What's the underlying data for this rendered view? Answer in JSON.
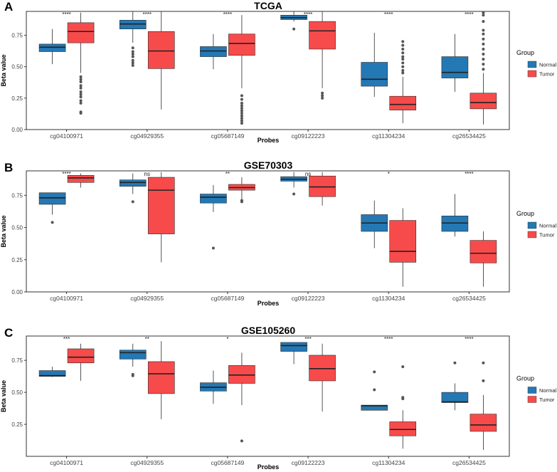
{
  "colors": {
    "normal": "#2478b4",
    "tumor": "#f74b4b",
    "outline": "#2b2b2b",
    "axis": "#333333",
    "outlier": "#555555"
  },
  "chart_data": [
    {
      "type": "boxplot",
      "panel_letter": "A",
      "title": "TCGA",
      "xlabel": "Probes",
      "ylabel": "Beta value",
      "ylim": [
        0,
        0.94
      ],
      "yticks": [
        "0.00",
        "0.25",
        "0.50",
        "0.75"
      ],
      "ytick_values": [
        0,
        0.25,
        0.5,
        0.75
      ],
      "categories": [
        "cg04100971",
        "cg04929355",
        "cg05687149",
        "cg09122223",
        "cg11304234",
        "cg26534425"
      ],
      "significance": [
        "****",
        "****",
        "****",
        "****",
        "****",
        "****"
      ],
      "legend": {
        "title": "Group",
        "entries": [
          "Normal",
          "Tumor"
        ]
      },
      "series": [
        {
          "name": "Normal",
          "boxes": [
            {
              "min": 0.52,
              "q1": 0.62,
              "median": 0.655,
              "q3": 0.68,
              "max": 0.8,
              "outliers": []
            },
            {
              "min": 0.69,
              "q1": 0.8,
              "median": 0.84,
              "q3": 0.87,
              "max": 0.94,
              "outliers": [
                0.51,
                0.53,
                0.55,
                0.58,
                0.6,
                0.62,
                0.65
              ]
            },
            {
              "min": 0.48,
              "q1": 0.58,
              "median": 0.625,
              "q3": 0.66,
              "max": 0.76,
              "outliers": []
            },
            {
              "min": 0.86,
              "q1": 0.875,
              "median": 0.89,
              "q3": 0.91,
              "max": 0.94,
              "outliers": [
                0.8
              ]
            },
            {
              "min": 0.26,
              "q1": 0.345,
              "median": 0.4,
              "q3": 0.535,
              "max": 0.77,
              "outliers": []
            },
            {
              "min": 0.3,
              "q1": 0.41,
              "median": 0.455,
              "q3": 0.58,
              "max": 0.76,
              "outliers": []
            }
          ]
        },
        {
          "name": "Tumor",
          "boxes": [
            {
              "min": 0.45,
              "q1": 0.69,
              "median": 0.78,
              "q3": 0.85,
              "max": 0.93,
              "outliers": [
                0.13,
                0.14,
                0.21,
                0.23,
                0.26,
                0.28,
                0.3,
                0.33,
                0.35,
                0.38,
                0.4,
                0.42
              ]
            },
            {
              "min": 0.16,
              "q1": 0.485,
              "median": 0.625,
              "q3": 0.78,
              "max": 0.94,
              "outliers": []
            },
            {
              "min": 0.33,
              "q1": 0.59,
              "median": 0.685,
              "q3": 0.76,
              "max": 0.91,
              "outliers": [
                0.05,
                0.07,
                0.09,
                0.11,
                0.13,
                0.15,
                0.17,
                0.19,
                0.21,
                0.24,
                0.27
              ]
            },
            {
              "min": 0.33,
              "q1": 0.64,
              "median": 0.785,
              "q3": 0.86,
              "max": 0.94,
              "outliers": [
                0.25,
                0.27,
                0.29
              ]
            },
            {
              "min": 0.05,
              "q1": 0.155,
              "median": 0.2,
              "q3": 0.265,
              "max": 0.42,
              "outliers": [
                0.45,
                0.47,
                0.5,
                0.53,
                0.56,
                0.58,
                0.61,
                0.64,
                0.67,
                0.7
              ]
            },
            {
              "min": 0.04,
              "q1": 0.165,
              "median": 0.215,
              "q3": 0.29,
              "max": 0.45,
              "outliers": [
                0.48,
                0.52,
                0.56,
                0.6,
                0.64,
                0.68,
                0.72,
                0.76,
                0.79,
                0.86,
                0.91,
                0.93
              ]
            }
          ]
        }
      ]
    },
    {
      "type": "boxplot",
      "panel_letter": "B",
      "title": "GSE70303",
      "xlabel": "Probes",
      "ylabel": "Beta value",
      "ylim": [
        0,
        0.94
      ],
      "yticks": [
        "0.00",
        "0.25",
        "0.50",
        "0.75"
      ],
      "ytick_values": [
        0,
        0.25,
        0.5,
        0.75
      ],
      "categories": [
        "cg04100971",
        "cg04929355",
        "cg05687149",
        "cg09122223",
        "cg11304234",
        "cg26534425"
      ],
      "significance": [
        "****",
        "ns",
        "**",
        "ns",
        "*",
        "****"
      ],
      "legend": {
        "title": "Group",
        "entries": [
          "Normal",
          "Tumor"
        ]
      },
      "series": [
        {
          "name": "Normal",
          "boxes": [
            {
              "min": 0.6,
              "q1": 0.68,
              "median": 0.73,
              "q3": 0.77,
              "max": 0.77,
              "outliers": [
                0.54
              ]
            },
            {
              "min": 0.76,
              "q1": 0.82,
              "median": 0.85,
              "q3": 0.87,
              "max": 0.92,
              "outliers": [
                0.7
              ]
            },
            {
              "min": 0.62,
              "q1": 0.69,
              "median": 0.735,
              "q3": 0.76,
              "max": 0.83,
              "outliers": [
                0.34
              ]
            },
            {
              "min": 0.81,
              "q1": 0.86,
              "median": 0.875,
              "q3": 0.895,
              "max": 0.93,
              "outliers": [
                0.76
              ]
            },
            {
              "min": 0.34,
              "q1": 0.47,
              "median": 0.535,
              "q3": 0.6,
              "max": 0.71,
              "outliers": []
            },
            {
              "min": 0.43,
              "q1": 0.47,
              "median": 0.535,
              "q3": 0.59,
              "max": 0.76,
              "outliers": []
            }
          ]
        },
        {
          "name": "Tumor",
          "boxes": [
            {
              "min": 0.81,
              "q1": 0.85,
              "median": 0.885,
              "q3": 0.905,
              "max": 0.92,
              "outliers": []
            },
            {
              "min": 0.23,
              "q1": 0.45,
              "median": 0.79,
              "q3": 0.89,
              "max": 0.93,
              "outliers": []
            },
            {
              "min": 0.72,
              "q1": 0.79,
              "median": 0.81,
              "q3": 0.835,
              "max": 0.89,
              "outliers": [
                0.7,
                0.71
              ]
            },
            {
              "min": 0.67,
              "q1": 0.74,
              "median": 0.815,
              "q3": 0.9,
              "max": 0.93,
              "outliers": []
            },
            {
              "min": 0.04,
              "q1": 0.23,
              "median": 0.315,
              "q3": 0.555,
              "max": 0.65,
              "outliers": []
            },
            {
              "min": 0.04,
              "q1": 0.225,
              "median": 0.3,
              "q3": 0.4,
              "max": 0.47,
              "outliers": []
            }
          ]
        }
      ]
    },
    {
      "type": "boxplot",
      "panel_letter": "C",
      "title": "GSE105260",
      "xlabel": "Probes",
      "ylabel": "Beta value",
      "ylim": [
        0,
        0.94
      ],
      "yticks": [
        "0.25",
        "0.50",
        "0.75"
      ],
      "ytick_values": [
        0.25,
        0.5,
        0.75
      ],
      "categories": [
        "cg04100971",
        "cg04929355",
        "cg05687149",
        "cg09122223",
        "cg11304234",
        "cg26534425"
      ],
      "significance": [
        "***",
        "**",
        "*",
        "***",
        "****",
        "****"
      ],
      "legend": {
        "title": "Group",
        "entries": [
          "Normal",
          "Tumor"
        ]
      },
      "series": [
        {
          "name": "Normal",
          "boxes": [
            {
              "min": 0.62,
              "q1": 0.625,
              "median": 0.63,
              "q3": 0.67,
              "max": 0.7,
              "outliers": []
            },
            {
              "min": 0.7,
              "q1": 0.76,
              "median": 0.81,
              "q3": 0.83,
              "max": 0.88,
              "outliers": [
                0.63,
                0.64
              ]
            },
            {
              "min": 0.41,
              "q1": 0.51,
              "median": 0.54,
              "q3": 0.575,
              "max": 0.67,
              "outliers": []
            },
            {
              "min": 0.72,
              "q1": 0.82,
              "median": 0.865,
              "q3": 0.89,
              "max": 0.89,
              "outliers": []
            },
            {
              "min": 0.36,
              "q1": 0.36,
              "median": 0.395,
              "q3": 0.4,
              "max": 0.4,
              "outliers": [
                0.52,
                0.66
              ]
            },
            {
              "min": 0.36,
              "q1": 0.42,
              "median": 0.425,
              "q3": 0.5,
              "max": 0.57,
              "outliers": [
                0.73
              ]
            }
          ]
        },
        {
          "name": "Tumor",
          "boxes": [
            {
              "min": 0.59,
              "q1": 0.73,
              "median": 0.775,
              "q3": 0.84,
              "max": 0.88,
              "outliers": []
            },
            {
              "min": 0.29,
              "q1": 0.49,
              "median": 0.645,
              "q3": 0.74,
              "max": 0.9,
              "outliers": []
            },
            {
              "min": 0.4,
              "q1": 0.57,
              "median": 0.635,
              "q3": 0.71,
              "max": 0.81,
              "outliers": [
                0.12
              ]
            },
            {
              "min": 0.35,
              "q1": 0.59,
              "median": 0.685,
              "q3": 0.79,
              "max": 0.88,
              "outliers": []
            },
            {
              "min": 0.06,
              "q1": 0.16,
              "median": 0.21,
              "q3": 0.27,
              "max": 0.36,
              "outliers": [
                0.45,
                0.46,
                0.7
              ]
            },
            {
              "min": 0.05,
              "q1": 0.195,
              "median": 0.245,
              "q3": 0.33,
              "max": 0.48,
              "outliers": [
                0.59,
                0.73
              ]
            }
          ]
        }
      ]
    }
  ]
}
